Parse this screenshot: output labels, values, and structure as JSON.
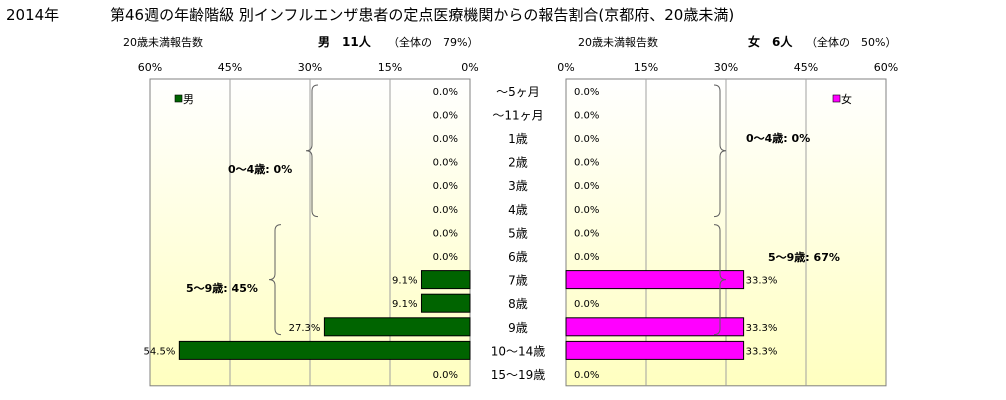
{
  "header": {
    "year": "2014年",
    "title": "第46週の年齢階級 別インフルエンザ患者の定点医療機関からの報告割合(京都府、20歳未満)"
  },
  "left_panel": {
    "count_label": "20歳未満報告数",
    "summary_label": "男　11人",
    "share_label": "（全体の　79%）"
  },
  "right_panel": {
    "count_label": "20歳未満報告数",
    "summary_label": "女　6人",
    "share_label": "（全体の　50%）"
  },
  "colors": {
    "male": "#006400",
    "female": "#ff00ff",
    "background_top": "#ffffff",
    "background_bottom": "#ffffc0",
    "grid": "#a0a0a0"
  },
  "chart_data": [
    {
      "type": "bar",
      "orientation": "horizontal",
      "direction": "right-to-left",
      "legend": "男",
      "legend_position": "top-left",
      "grid": true,
      "xlim": [
        0,
        60
      ],
      "ticks": [
        "60%",
        "45%",
        "30%",
        "15%",
        "0%"
      ],
      "categories": [
        "～5ヶ月",
        "～11ヶ月",
        "1歳",
        "2歳",
        "3歳",
        "4歳",
        "5歳",
        "6歳",
        "7歳",
        "8歳",
        "9歳",
        "10～14歳",
        "15～19歳"
      ],
      "values": [
        0,
        0,
        0,
        0,
        0,
        0,
        0,
        0,
        9.1,
        9.1,
        27.3,
        54.5,
        0
      ],
      "labels": [
        "0.0%",
        "0.0%",
        "0.0%",
        "0.0%",
        "0.0%",
        "0.0%",
        "0.0%",
        "0.0%",
        "9.1%",
        "9.1%",
        "27.3%",
        "54.5%",
        "0.0%"
      ],
      "annotations": [
        "0～4歳: 0%",
        "5～9歳: 45%"
      ]
    },
    {
      "type": "bar",
      "orientation": "horizontal",
      "direction": "left-to-right",
      "legend": "女",
      "legend_position": "top-right",
      "grid": true,
      "xlim": [
        0,
        60
      ],
      "ticks": [
        "0%",
        "15%",
        "30%",
        "45%",
        "60%"
      ],
      "categories": [
        "～5ヶ月",
        "～11ヶ月",
        "1歳",
        "2歳",
        "3歳",
        "4歳",
        "5歳",
        "6歳",
        "7歳",
        "8歳",
        "9歳",
        "10～14歳",
        "15～19歳"
      ],
      "values": [
        0,
        0,
        0,
        0,
        0,
        0,
        0,
        0,
        33.3,
        0,
        33.3,
        33.3,
        0
      ],
      "labels": [
        "0.0%",
        "0.0%",
        "0.0%",
        "0.0%",
        "0.0%",
        "0.0%",
        "0.0%",
        "0.0%",
        "33.3%",
        "0.0%",
        "33.3%",
        "33.3%",
        "0.0%"
      ],
      "annotations": [
        "0～4歳: 0%",
        "5～9歳: 67%"
      ]
    }
  ]
}
